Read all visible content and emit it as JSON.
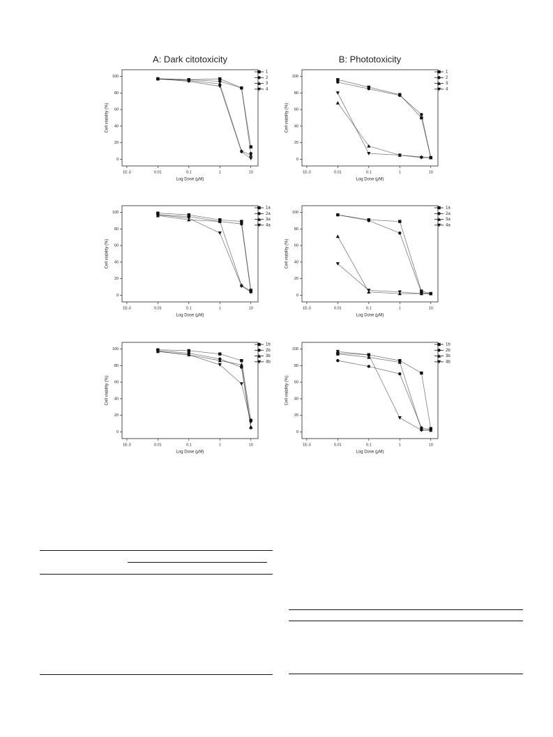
{
  "chart_data": [
    {
      "type": "line",
      "title": "A: Dark citotoxicity",
      "x_label": "Log Dose (μM)",
      "y_label": "Cell viability (%)",
      "log_x": true,
      "legend": "upper right",
      "x": [
        0.01,
        0.1,
        1,
        5,
        10
      ],
      "xlim": [
        0.0007,
        17
      ],
      "ylim": [
        -8,
        108
      ],
      "xticks": [
        {
          "value": 0.001,
          "label": "1E-3"
        },
        0.01,
        0.1,
        1,
        10
      ],
      "yticks": [
        0,
        20,
        40,
        60,
        80,
        100
      ],
      "series": [
        {
          "name": "1",
          "color": "#111111",
          "marker": "square",
          "values": [
            97,
            96,
            97,
            86,
            15
          ]
        },
        {
          "name": "2",
          "color": "#111111",
          "marker": "circle",
          "values": [
            97,
            96,
            94,
            86,
            7
          ]
        },
        {
          "name": "3",
          "color": "#111111",
          "marker": "triangle-up",
          "values": [
            97,
            95,
            91,
            10,
            5
          ]
        },
        {
          "name": "4",
          "color": "#111111",
          "marker": "triangle-down",
          "values": [
            97,
            94,
            88,
            9,
            1
          ]
        }
      ]
    },
    {
      "type": "line",
      "title": "B: Phototoxicity",
      "x_label": "Log Dose (μM)",
      "y_label": "Cell viability (%)",
      "log_x": true,
      "legend": "upper right",
      "x": [
        0.01,
        0.1,
        1,
        5,
        10
      ],
      "xlim": [
        0.0007,
        17
      ],
      "ylim": [
        -8,
        108
      ],
      "xticks": [
        {
          "value": 0.001,
          "label": "1E-3"
        },
        0.01,
        0.1,
        1,
        10
      ],
      "yticks": [
        0,
        20,
        40,
        60,
        80,
        100
      ],
      "series": [
        {
          "name": "1",
          "color": "#111111",
          "marker": "square",
          "values": [
            96,
            87,
            78,
            50,
            2
          ]
        },
        {
          "name": "2",
          "color": "#111111",
          "marker": "circle",
          "values": [
            93,
            85,
            77,
            54,
            2
          ]
        },
        {
          "name": "3",
          "color": "#111111",
          "marker": "triangle-up",
          "values": [
            68,
            16,
            5,
            3,
            2
          ]
        },
        {
          "name": "4",
          "color": "#111111",
          "marker": "triangle-down",
          "values": [
            80,
            7,
            5,
            2,
            2
          ]
        }
      ]
    },
    {
      "type": "line",
      "x_label": "Log Dose (μM)",
      "y_label": "Cell viability (%)",
      "log_x": true,
      "legend": "upper right",
      "x": [
        0.01,
        0.1,
        1,
        5,
        10
      ],
      "xlim": [
        0.0007,
        17
      ],
      "ylim": [
        -8,
        108
      ],
      "xticks": [
        {
          "value": 0.001,
          "label": "1E-3"
        },
        0.01,
        0.1,
        1,
        10
      ],
      "yticks": [
        0,
        20,
        40,
        60,
        80,
        100
      ],
      "series": [
        {
          "name": "1a",
          "color": "#111111",
          "marker": "square",
          "values": [
            99,
            97,
            91,
            89,
            6
          ]
        },
        {
          "name": "2a",
          "color": "#111111",
          "marker": "circle",
          "values": [
            97,
            95,
            89,
            86,
            4
          ]
        },
        {
          "name": "3a",
          "color": "#111111",
          "marker": "triangle-up",
          "values": [
            96,
            91,
            89,
            12,
            5
          ]
        },
        {
          "name": "4a",
          "color": "#111111",
          "marker": "triangle-down",
          "values": [
            97,
            93,
            75,
            11,
            4
          ]
        }
      ]
    },
    {
      "type": "line",
      "x_label": "Log Dose (μM)",
      "y_label": "Cell viability (%)",
      "log_x": true,
      "legend": "upper right",
      "x": [
        0.01,
        0.1,
        1,
        5,
        10
      ],
      "xlim": [
        0.0007,
        17
      ],
      "ylim": [
        -8,
        108
      ],
      "xticks": [
        {
          "value": 0.001,
          "label": "1E-3"
        },
        0.01,
        0.1,
        1,
        10
      ],
      "yticks": [
        0,
        20,
        40,
        60,
        80,
        100
      ],
      "series": [
        {
          "name": "1a",
          "color": "#111111",
          "marker": "square",
          "values": [
            97,
            91,
            89,
            5,
            2
          ]
        },
        {
          "name": "2a",
          "color": "#111111",
          "marker": "circle",
          "values": [
            97,
            90,
            75,
            3,
            2
          ]
        },
        {
          "name": "3a",
          "color": "#111111",
          "marker": "triangle-up",
          "values": [
            71,
            4,
            2,
            2,
            2
          ]
        },
        {
          "name": "4a",
          "color": "#111111",
          "marker": "triangle-down",
          "values": [
            38,
            6,
            4,
            2,
            2
          ]
        }
      ]
    },
    {
      "type": "line",
      "x_label": "Log Dose (μM)",
      "y_label": "Cell viability (%)",
      "log_x": true,
      "legend": "upper right",
      "x": [
        0.01,
        0.1,
        1,
        5,
        10
      ],
      "xlim": [
        0.0007,
        17
      ],
      "ylim": [
        -8,
        108
      ],
      "xticks": [
        {
          "value": 0.001,
          "label": "1E-3"
        },
        0.01,
        0.1,
        1,
        10
      ],
      "yticks": [
        0,
        20,
        40,
        60,
        80,
        100
      ],
      "series": [
        {
          "name": "1b",
          "color": "#111111",
          "marker": "square",
          "values": [
            99,
            98,
            94,
            86,
            14
          ]
        },
        {
          "name": "2b",
          "color": "#111111",
          "marker": "circle",
          "values": [
            98,
            95,
            88,
            78,
            5
          ]
        },
        {
          "name": "3b",
          "color": "#111111",
          "marker": "triangle-up",
          "values": [
            97,
            93,
            86,
            81,
            6
          ]
        },
        {
          "name": "4b",
          "color": "#111111",
          "marker": "triangle-down",
          "values": [
            97,
            93,
            81,
            58,
            12
          ]
        }
      ]
    },
    {
      "type": "line",
      "x_label": "Log Dose (μM)",
      "y_label": "Cell viability (%)",
      "log_x": true,
      "legend": "upper right",
      "x": [
        0.01,
        0.1,
        1,
        5,
        10
      ],
      "xlim": [
        0.0007,
        17
      ],
      "ylim": [
        -8,
        108
      ],
      "xticks": [
        {
          "value": 0.001,
          "label": "1E-3"
        },
        0.01,
        0.1,
        1,
        10
      ],
      "yticks": [
        0,
        20,
        40,
        60,
        80,
        100
      ],
      "series": [
        {
          "name": "1b",
          "color": "#111111",
          "marker": "square",
          "values": [
            95,
            93,
            86,
            71,
            4
          ]
        },
        {
          "name": "2b",
          "color": "#111111",
          "marker": "circle",
          "values": [
            86,
            79,
            70,
            5,
            3
          ]
        },
        {
          "name": "3b",
          "color": "#111111",
          "marker": "triangle-up",
          "values": [
            94,
            90,
            84,
            3,
            2
          ]
        },
        {
          "name": "4b",
          "color": "#111111",
          "marker": "triangle-down",
          "values": [
            97,
            93,
            17,
            2,
            2
          ]
        }
      ]
    }
  ]
}
